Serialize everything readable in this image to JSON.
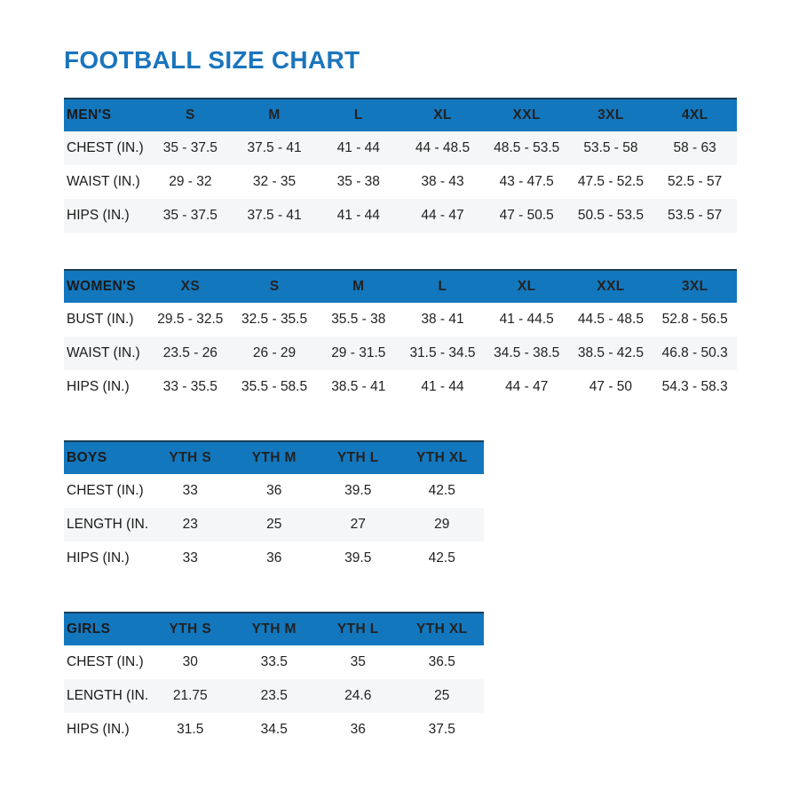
{
  "page_title": "FOOTBALL SIZE CHART",
  "colors": {
    "title_blue": "#1b75bc",
    "header_blue": "#1377bd",
    "header_top_border": "#1a3e55",
    "stripe": "#f5f6f7",
    "header_text": "#ffffff",
    "body_text": "#222222"
  },
  "tables": [
    {
      "id": "mens",
      "width": "wide",
      "header": [
        "MEN'S",
        "S",
        "M",
        "L",
        "XL",
        "XXL",
        "3XL",
        "4XL"
      ],
      "rows": [
        {
          "label": "CHEST (IN.)",
          "values": [
            "35 - 37.5",
            "37.5 - 41",
            "41 - 44",
            "44 - 48.5",
            "48.5 - 53.5",
            "53.5 - 58",
            "58 - 63"
          ]
        },
        {
          "label": "WAIST (IN.)",
          "values": [
            "29 - 32",
            "32 - 35",
            "35 - 38",
            "38 - 43",
            "43 - 47.5",
            "47.5 - 52.5",
            "52.5 - 57"
          ]
        },
        {
          "label": "HIPS (IN.)",
          "values": [
            "35 - 37.5",
            "37.5 - 41",
            "41 - 44",
            "44 - 47",
            "47 - 50.5",
            "50.5 - 53.5",
            "53.5 - 57"
          ]
        }
      ],
      "striped_rows": [
        0,
        2
      ]
    },
    {
      "id": "womens",
      "width": "wide",
      "header": [
        "WOMEN'S",
        "XS",
        "S",
        "M",
        "L",
        "XL",
        "XXL",
        "3XL"
      ],
      "rows": [
        {
          "label": "BUST (IN.)",
          "values": [
            "29.5 - 32.5",
            "32.5 - 35.5",
            "35.5 - 38",
            "38 - 41",
            "41 - 44.5",
            "44.5 - 48.5",
            "52.8 - 56.5"
          ]
        },
        {
          "label": "WAIST (IN.)",
          "values": [
            "23.5 - 26",
            "26 - 29",
            "29 - 31.5",
            "31.5 - 34.5",
            "34.5 - 38.5",
            "38.5 - 42.5",
            "46.8 - 50.3"
          ]
        },
        {
          "label": "HIPS (IN.)",
          "values": [
            "33 - 35.5",
            "35.5 - 58.5",
            "38.5 - 41",
            "41 - 44",
            "44 - 47",
            "47 - 50",
            "54.3 - 58.3"
          ]
        }
      ],
      "striped_rows": [
        1
      ]
    },
    {
      "id": "boys",
      "width": "narrow",
      "header": [
        "BOYS",
        "YTH S",
        "YTH M",
        "YTH L",
        "YTH XL"
      ],
      "rows": [
        {
          "label": "CHEST (IN.)",
          "values": [
            "33",
            "36",
            "39.5",
            "42.5"
          ]
        },
        {
          "label": "LENGTH (IN.)",
          "values": [
            "23",
            "25",
            "27",
            "29"
          ]
        },
        {
          "label": "HIPS (IN.)",
          "values": [
            "33",
            "36",
            "39.5",
            "42.5"
          ]
        }
      ],
      "striped_rows": [
        1
      ]
    },
    {
      "id": "girls",
      "width": "narrow",
      "header": [
        "GIRLS",
        "YTH S",
        "YTH M",
        "YTH L",
        "YTH XL"
      ],
      "rows": [
        {
          "label": "CHEST (IN.)",
          "values": [
            "30",
            "33.5",
            "35",
            "36.5"
          ]
        },
        {
          "label": "LENGTH (IN.)",
          "values": [
            "21.75",
            "23.5",
            "24.6",
            "25"
          ]
        },
        {
          "label": "HIPS (IN.)",
          "values": [
            "31.5",
            "34.5",
            "36",
            "37.5"
          ]
        }
      ],
      "striped_rows": [
        1
      ]
    }
  ]
}
